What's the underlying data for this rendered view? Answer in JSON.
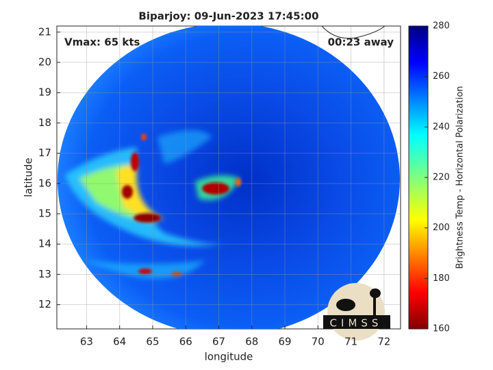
{
  "chart_data": {
    "type": "image",
    "title": "Biparjoy: 09-Jun-2023 17:45:00",
    "xlabel": "longitude",
    "ylabel": "latitude",
    "annotations": [
      "Vmax: 65 kts",
      "00:23 away"
    ],
    "logo_text": "CIMSS",
    "xlim": [
      62.1,
      72.5
    ],
    "xticks": [
      63,
      64,
      65,
      66,
      67,
      68,
      69,
      70,
      71,
      72
    ],
    "ylim": [
      11.2,
      21.2
    ],
    "yticks": [
      12,
      13,
      14,
      15,
      16,
      17,
      18,
      19,
      20,
      21
    ],
    "grid": true,
    "colorbar": {
      "label": "Brightness Temp - Horizontal Polarization",
      "colormap": "jet",
      "lim": [
        160,
        280
      ],
      "ticks": [
        160,
        180,
        200,
        220,
        240,
        260,
        280
      ]
    }
  }
}
